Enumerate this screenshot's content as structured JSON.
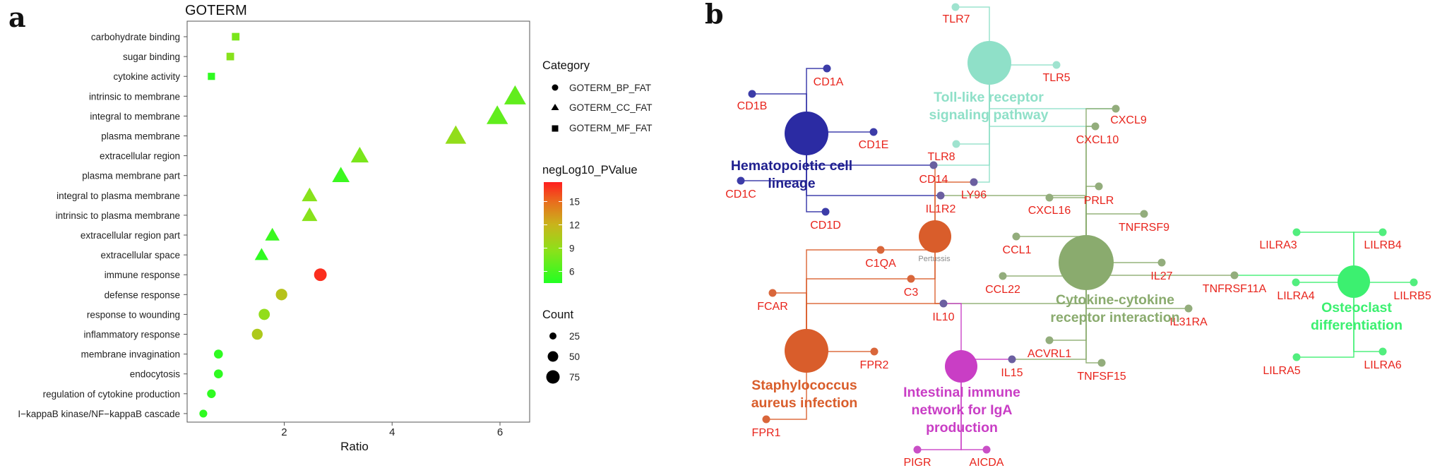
{
  "panel_a": {
    "letter": "a",
    "chart_data": {
      "type": "scatter",
      "title": "GOTERM",
      "xlabel": "Ratio",
      "ylabel": "",
      "xlim": [
        0.2,
        6.55
      ],
      "xticks": [
        2,
        4,
        6
      ],
      "categories": [
        "carbohydrate binding",
        "sugar binding",
        "cytokine activity",
        "intrinsic to membrane",
        "integral to membrane",
        "plasma membrane",
        "extracellular region",
        "plasma membrane part",
        "integral to plasma membrane",
        "intrinsic to plasma membrane",
        "extracellular region part",
        "extracellular space",
        "immune response",
        "defense response",
        "response to wounding",
        "inflammatory response",
        "membrane invagination",
        "endocytosis",
        "regulation of cytokine production",
        "I−kappaB kinase/NF−kappaB cascade"
      ],
      "points": [
        {
          "term": "carbohydrate binding",
          "ratio": 1.1,
          "neglog10_p": 8.0,
          "count": 10,
          "category": "GOTERM_MF_FAT"
        },
        {
          "term": "sugar binding",
          "ratio": 1.0,
          "neglog10_p": 8.5,
          "count": 10,
          "category": "GOTERM_MF_FAT"
        },
        {
          "term": "cytokine activity",
          "ratio": 0.65,
          "neglog10_p": 5.0,
          "count": 8,
          "category": "GOTERM_MF_FAT"
        },
        {
          "term": "intrinsic to membrane",
          "ratio": 6.28,
          "neglog10_p": 7.0,
          "count": 78,
          "category": "GOTERM_CC_FAT"
        },
        {
          "term": "integral to membrane",
          "ratio": 5.95,
          "neglog10_p": 7.0,
          "count": 74,
          "category": "GOTERM_CC_FAT"
        },
        {
          "term": "plasma membrane",
          "ratio": 5.18,
          "neglog10_p": 9.0,
          "count": 70,
          "category": "GOTERM_CC_FAT"
        },
        {
          "term": "extracellular region",
          "ratio": 3.4,
          "neglog10_p": 8.0,
          "count": 45,
          "category": "GOTERM_CC_FAT"
        },
        {
          "term": "plasma membrane part",
          "ratio": 3.05,
          "neglog10_p": 5.5,
          "count": 42,
          "category": "GOTERM_CC_FAT"
        },
        {
          "term": "integral to plasma membrane",
          "ratio": 2.47,
          "neglog10_p": 8.5,
          "count": 30,
          "category": "GOTERM_CC_FAT"
        },
        {
          "term": "intrinsic to plasma membrane",
          "ratio": 2.47,
          "neglog10_p": 8.5,
          "count": 30,
          "category": "GOTERM_CC_FAT"
        },
        {
          "term": "extracellular region part",
          "ratio": 1.78,
          "neglog10_p": 5.5,
          "count": 24,
          "category": "GOTERM_CC_FAT"
        },
        {
          "term": "extracellular space",
          "ratio": 1.58,
          "neglog10_p": 5.0,
          "count": 20,
          "category": "GOTERM_CC_FAT"
        },
        {
          "term": "immune response",
          "ratio": 2.67,
          "neglog10_p": 17.0,
          "count": 32,
          "category": "GOTERM_BP_FAT"
        },
        {
          "term": "defense response",
          "ratio": 1.95,
          "neglog10_p": 11.0,
          "count": 24,
          "category": "GOTERM_BP_FAT"
        },
        {
          "term": "response to wounding",
          "ratio": 1.63,
          "neglog10_p": 9.0,
          "count": 22,
          "category": "GOTERM_BP_FAT"
        },
        {
          "term": "inflammatory response",
          "ratio": 1.5,
          "neglog10_p": 10.5,
          "count": 20,
          "category": "GOTERM_BP_FAT"
        },
        {
          "term": "membrane invagination",
          "ratio": 0.78,
          "neglog10_p": 5.0,
          "count": 10,
          "category": "GOTERM_BP_FAT"
        },
        {
          "term": "endocytosis",
          "ratio": 0.78,
          "neglog10_p": 5.0,
          "count": 10,
          "category": "GOTERM_BP_FAT"
        },
        {
          "term": "regulation of cytokine production",
          "ratio": 0.65,
          "neglog10_p": 5.0,
          "count": 9,
          "category": "GOTERM_BP_FAT"
        },
        {
          "term": "I−kappaB kinase/NF−kappaB cascade",
          "ratio": 0.5,
          "neglog10_p": 5.0,
          "count": 6,
          "category": "GOTERM_BP_FAT"
        }
      ],
      "legend_category": {
        "title": "Category",
        "items": [
          {
            "label": "GOTERM_BP_FAT",
            "shape": "circle"
          },
          {
            "label": "GOTERM_CC_FAT",
            "shape": "triangle"
          },
          {
            "label": "GOTERM_MF_FAT",
            "shape": "square"
          }
        ]
      },
      "legend_color": {
        "title": "negLog10_PValue",
        "min": 4.5,
        "max": 17.5,
        "ticks": [
          "15",
          "12",
          "9",
          "6"
        ],
        "tick_values": [
          15,
          12,
          9,
          6
        ],
        "colors": {
          "low": "#22ff22",
          "high": "#ff1e1e"
        }
      },
      "legend_size": {
        "title": "Count",
        "ticks": [
          "25",
          "50",
          "75"
        ],
        "tick_values": [
          25,
          50,
          75
        ]
      },
      "grid": false,
      "legend_placement": "right"
    }
  },
  "panel_b": {
    "letter": "b",
    "colors": {
      "hema": "#2b2ba3",
      "tlr": "#8fe0c8",
      "cyto": "#8aab6e",
      "staph": "#d95d2b",
      "iga": "#c93ec5",
      "osteo": "#3cf070",
      "gene_text": "#e8241c"
    },
    "pathways": [
      {
        "id": "hema",
        "lines": [
          "Hematopoietic cell",
          "lineage"
        ]
      },
      {
        "id": "tlr",
        "lines": [
          "Toll-like receptor",
          "signaling pathway"
        ]
      },
      {
        "id": "cyto",
        "lines": [
          "Cytokine-cytokine",
          "receptor interaction"
        ]
      },
      {
        "id": "staph",
        "lines": [
          "Staphylococcus",
          "aureus infection"
        ]
      },
      {
        "id": "iga",
        "lines": [
          "Intestinal immune",
          "network for IgA",
          "production"
        ]
      },
      {
        "id": "osteo",
        "lines": [
          "Osteoclast",
          "differentiation"
        ]
      }
    ],
    "pertussis_label": "Pertussis",
    "genes": [
      "TLR7",
      "TLR5",
      "CXCL9",
      "CXCL10",
      "TLR8",
      "CD14",
      "LY96",
      "CD1A",
      "CD1B",
      "CD1E",
      "CD1C",
      "CD1D",
      "IL1R2",
      "CXCL16",
      "PRLR",
      "TNFRSF9",
      "CCL1",
      "IL27",
      "TNFRSF11A",
      "CCL22",
      "IL31RA",
      "C1QA",
      "C3",
      "FCAR",
      "IL10",
      "FPR2",
      "ACVRL1",
      "IL15",
      "TNFSF15",
      "FPR1",
      "PIGR",
      "AICDA",
      "LILRA3",
      "LILRB4",
      "LILRA4",
      "LILRB5",
      "LILRA5",
      "LILRA6"
    ]
  }
}
